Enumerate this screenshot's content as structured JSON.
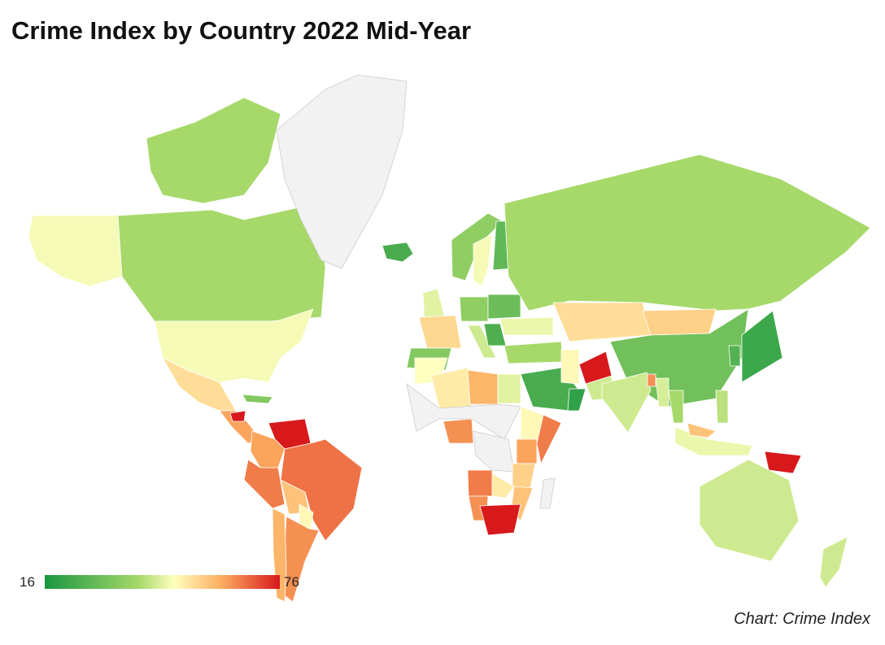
{
  "title": "Crime Index by Country 2022 Mid-Year",
  "source": "Chart: Crime Index",
  "chart_data": {
    "type": "choropleth",
    "title": "Crime Index by Country 2022 Mid-Year",
    "metric": "Crime Index",
    "legend": {
      "min": "16",
      "max": "76",
      "min_value": 16,
      "max_value": 76,
      "placement": "bottom-left"
    },
    "scale_colors": [
      "#1a9641",
      "#a6d96a",
      "#ffffbf",
      "#fdae61",
      "#d7191c"
    ],
    "no_data_color": "#f2f2f2",
    "regions": [
      {
        "name": "Alaska (USA)",
        "value": 48
      },
      {
        "name": "Canada",
        "value": 40
      },
      {
        "name": "Canadian Arctic Islands",
        "value": 40
      },
      {
        "name": "Greenland",
        "value": null
      },
      {
        "name": "United States",
        "value": 48
      },
      {
        "name": "Mexico",
        "value": 54
      },
      {
        "name": "Central America",
        "value": 62
      },
      {
        "name": "Honduras",
        "value": 76
      },
      {
        "name": "Cuba",
        "value": 34
      },
      {
        "name": "Venezuela",
        "value": 76
      },
      {
        "name": "Colombia",
        "value": 62
      },
      {
        "name": "Brazil",
        "value": 67
      },
      {
        "name": "Peru",
        "value": 66
      },
      {
        "name": "Bolivia",
        "value": 58
      },
      {
        "name": "Paraguay",
        "value": 50
      },
      {
        "name": "Argentina",
        "value": 64
      },
      {
        "name": "Chile",
        "value": 60
      },
      {
        "name": "Iceland",
        "value": 24
      },
      {
        "name": "Norway",
        "value": 36
      },
      {
        "name": "Sweden",
        "value": 48
      },
      {
        "name": "Finland",
        "value": 28
      },
      {
        "name": "United Kingdom",
        "value": 46
      },
      {
        "name": "France",
        "value": 55
      },
      {
        "name": "Spain",
        "value": 34
      },
      {
        "name": "Germany",
        "value": 36
      },
      {
        "name": "Italy",
        "value": 44
      },
      {
        "name": "Poland",
        "value": 30
      },
      {
        "name": "Ukraine",
        "value": 47
      },
      {
        "name": "Balkans",
        "value": 25
      },
      {
        "name": "Russia",
        "value": 40
      },
      {
        "name": "Turkey",
        "value": 40
      },
      {
        "name": "Kazakhstan",
        "value": 54
      },
      {
        "name": "Mongolia",
        "value": 56
      },
      {
        "name": "China",
        "value": 31
      },
      {
        "name": "Japan",
        "value": 22
      },
      {
        "name": "South Korea",
        "value": 26
      },
      {
        "name": "Saudi Arabia",
        "value": 24
      },
      {
        "name": "Oman",
        "value": 20
      },
      {
        "name": "Iran",
        "value": 50
      },
      {
        "name": "Afghanistan",
        "value": 76
      },
      {
        "name": "Pakistan",
        "value": 44
      },
      {
        "name": "India",
        "value": 44
      },
      {
        "name": "Bangladesh",
        "value": 64
      },
      {
        "name": "Myanmar",
        "value": 45
      },
      {
        "name": "Thailand",
        "value": 40
      },
      {
        "name": "Morocco",
        "value": 49
      },
      {
        "name": "Algeria",
        "value": 52
      },
      {
        "name": "Libya",
        "value": 60
      },
      {
        "name": "Egypt",
        "value": 46
      },
      {
        "name": "Sahel",
        "value": null
      },
      {
        "name": "Nigeria",
        "value": 64
      },
      {
        "name": "Central Africa",
        "value": null
      },
      {
        "name": "Ethiopia",
        "value": 50
      },
      {
        "name": "Kenya",
        "value": 62
      },
      {
        "name": "Somalia",
        "value": 66
      },
      {
        "name": "Tanzania",
        "value": 56
      },
      {
        "name": "Angola",
        "value": 66
      },
      {
        "name": "Namibia",
        "value": 64
      },
      {
        "name": "Zambia",
        "value": 52
      },
      {
        "name": "Mozambique",
        "value": 58
      },
      {
        "name": "South Africa",
        "value": 76
      },
      {
        "name": "Madagascar",
        "value": null
      },
      {
        "name": "Indonesia",
        "value": 47
      },
      {
        "name": "Malaysia",
        "value": 58
      },
      {
        "name": "Philippines",
        "value": 42
      },
      {
        "name": "Papua New Guinea",
        "value": 76
      },
      {
        "name": "Australia",
        "value": 44
      },
      {
        "name": "New Zealand",
        "value": 44
      }
    ]
  }
}
